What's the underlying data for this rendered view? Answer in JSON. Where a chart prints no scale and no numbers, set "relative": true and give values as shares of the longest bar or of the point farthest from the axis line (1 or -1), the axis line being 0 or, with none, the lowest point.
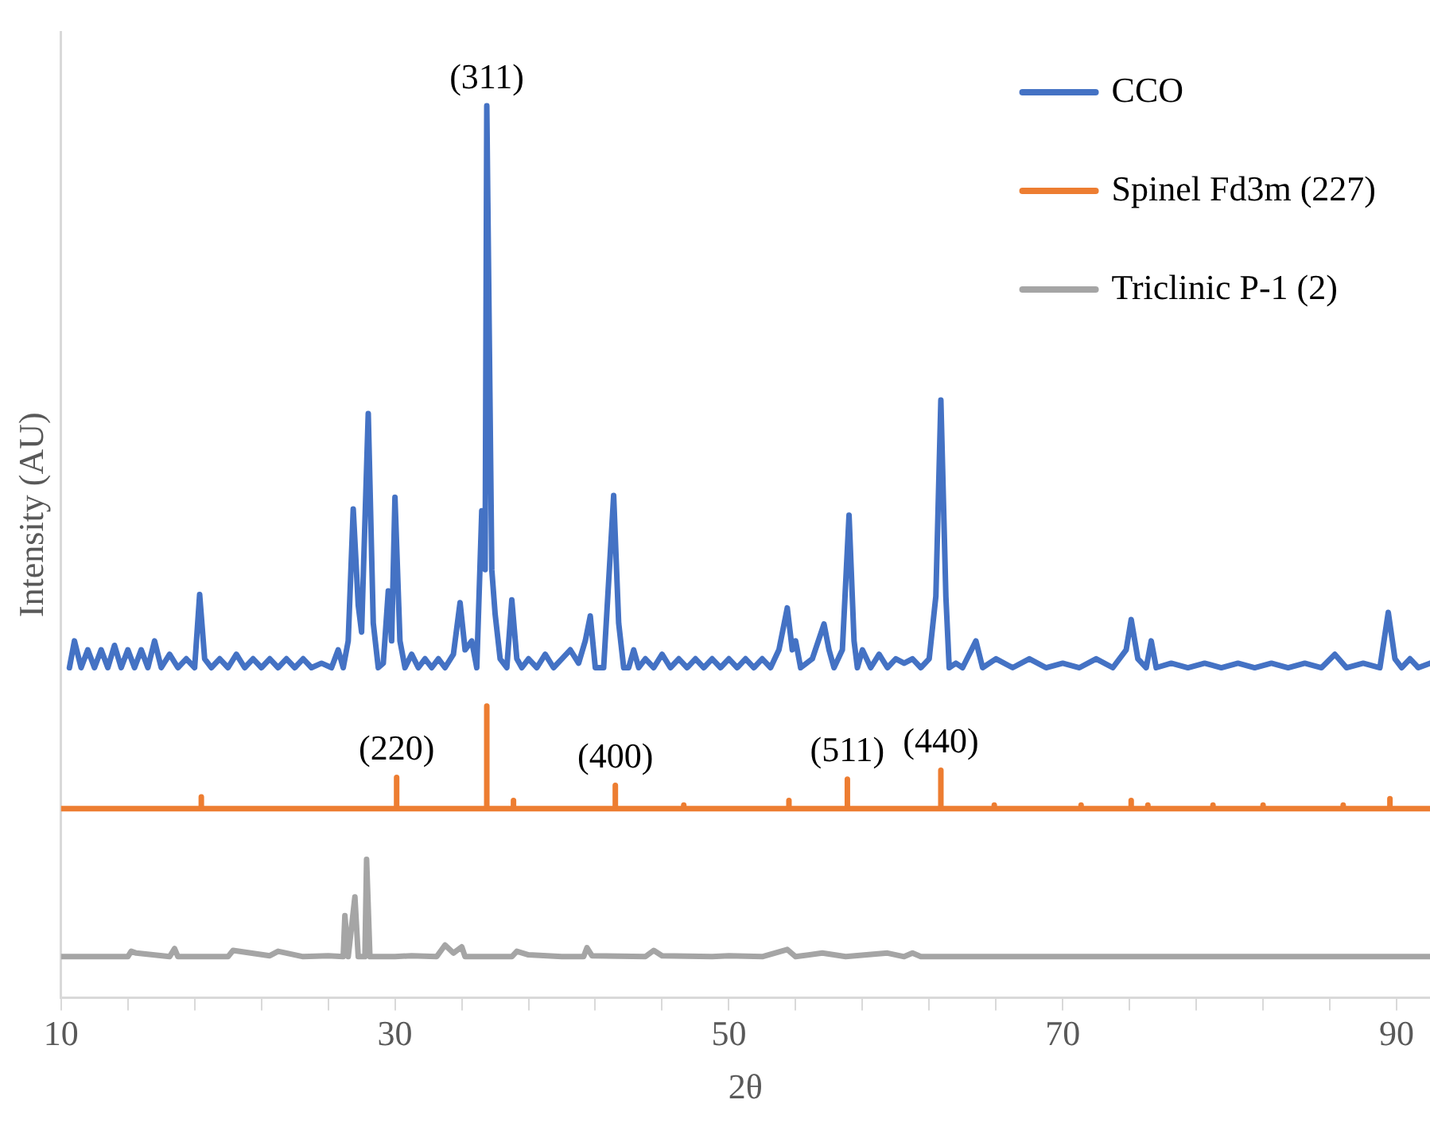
{
  "chart_data": {
    "type": "line",
    "xlabel": "2θ",
    "ylabel": "Intensity (AU)",
    "relative": true,
    "xlim": [
      10,
      92
    ],
    "xticks": [
      10,
      {
        "value": 14,
        "label": null
      },
      {
        "value": 18,
        "label": null
      },
      {
        "value": 22,
        "label": null
      },
      {
        "value": 26,
        "label": null
      },
      30,
      {
        "value": 34,
        "label": null
      },
      {
        "value": 38,
        "label": null
      },
      {
        "value": 42,
        "label": null
      },
      {
        "value": 46,
        "label": null
      },
      50,
      {
        "value": 54,
        "label": null
      },
      {
        "value": 58,
        "label": null
      },
      {
        "value": 62,
        "label": null
      },
      {
        "value": 66,
        "label": null
      },
      70,
      {
        "value": 74,
        "label": null
      },
      {
        "value": 78,
        "label": null
      },
      {
        "value": 82,
        "label": null
      },
      {
        "value": 86,
        "label": null
      },
      90
    ],
    "grid": false,
    "legend": "top right",
    "tick_labels": "x",
    "marker": "none",
    "series": [
      {
        "name": "CCO",
        "color": "#4472c4",
        "x": [
          10.5,
          10.8,
          11.2,
          11.6,
          12,
          12.4,
          12.8,
          13.2,
          13.6,
          14,
          14.4,
          14.8,
          15.2,
          15.6,
          16,
          16.5,
          17,
          17.5,
          18,
          18.3,
          18.6,
          19,
          19.5,
          20,
          20.5,
          21,
          21.5,
          22,
          22.5,
          23,
          23.5,
          24,
          24.5,
          25,
          25.6,
          26.2,
          26.6,
          26.9,
          27.2,
          27.5,
          27.8,
          28.0,
          28.4,
          28.7,
          29.0,
          29.3,
          29.6,
          29.8,
          30.0,
          30.3,
          30.6,
          31,
          31.4,
          31.8,
          32.2,
          32.6,
          33,
          33.5,
          33.9,
          34.2,
          34.6,
          34.9,
          35.2,
          35.4,
          35.5,
          35.8,
          36,
          36.3,
          36.7,
          37.0,
          37.3,
          37.6,
          38,
          38.5,
          39,
          39.5,
          40,
          40.5,
          41,
          41.4,
          41.7,
          42,
          42.5,
          43.1,
          43.4,
          43.7,
          44,
          44.3,
          44.6,
          45,
          45.5,
          46,
          46.5,
          47,
          47.5,
          48,
          48.5,
          49,
          49.5,
          50,
          50.5,
          51,
          51.5,
          52,
          52.5,
          53,
          53.5,
          53.8,
          54,
          54.3,
          55,
          55.7,
          56,
          56.3,
          56.8,
          57.2,
          57.5,
          57.7,
          58,
          58.5,
          59,
          59.5,
          60,
          60.5,
          61,
          61.5,
          62,
          62.4,
          62.7,
          63,
          63.2,
          63.6,
          64,
          64.8,
          65.2,
          66,
          67,
          68,
          69,
          70,
          71,
          72,
          73,
          73.8,
          74.1,
          74.5,
          75.0,
          75.3,
          75.6,
          76.5,
          77.5,
          78.5,
          79.5,
          80.5,
          81.5,
          82.5,
          83.5,
          84.5,
          85.5,
          86.3,
          87,
          88,
          89,
          89.5,
          89.9,
          90.3,
          90.8,
          91.3,
          92
        ],
        "values": [
          0.37,
          0.4,
          0.37,
          0.39,
          0.37,
          0.39,
          0.37,
          0.395,
          0.37,
          0.39,
          0.37,
          0.39,
          0.37,
          0.4,
          0.37,
          0.385,
          0.37,
          0.38,
          0.37,
          0.452,
          0.38,
          0.37,
          0.38,
          0.37,
          0.385,
          0.37,
          0.38,
          0.37,
          0.38,
          0.37,
          0.38,
          0.37,
          0.38,
          0.37,
          0.375,
          0.37,
          0.39,
          0.37,
          0.4,
          0.548,
          0.44,
          0.41,
          0.655,
          0.42,
          0.37,
          0.375,
          0.456,
          0.4,
          0.561,
          0.4,
          0.37,
          0.385,
          0.37,
          0.38,
          0.37,
          0.38,
          0.37,
          0.385,
          0.443,
          0.39,
          0.4,
          0.37,
          0.546,
          0.48,
          1.0,
          0.48,
          0.43,
          0.38,
          0.37,
          0.446,
          0.38,
          0.37,
          0.38,
          0.37,
          0.385,
          0.37,
          0.38,
          0.39,
          0.375,
          0.4,
          0.428,
          0.37,
          0.37,
          0.563,
          0.42,
          0.37,
          0.37,
          0.39,
          0.37,
          0.38,
          0.37,
          0.385,
          0.37,
          0.38,
          0.37,
          0.38,
          0.37,
          0.38,
          0.37,
          0.38,
          0.37,
          0.38,
          0.37,
          0.38,
          0.37,
          0.39,
          0.437,
          0.39,
          0.4,
          0.37,
          0.38,
          0.419,
          0.39,
          0.37,
          0.39,
          0.541,
          0.4,
          0.37,
          0.39,
          0.37,
          0.385,
          0.37,
          0.38,
          0.375,
          0.38,
          0.37,
          0.38,
          0.45,
          0.67,
          0.45,
          0.37,
          0.375,
          0.37,
          0.4,
          0.37,
          0.38,
          0.37,
          0.38,
          0.37,
          0.375,
          0.37,
          0.38,
          0.37,
          0.39,
          0.424,
          0.38,
          0.37,
          0.4,
          0.37,
          0.375,
          0.37,
          0.375,
          0.37,
          0.375,
          0.37,
          0.375,
          0.37,
          0.375,
          0.37,
          0.385,
          0.37,
          0.375,
          0.37,
          0.432,
          0.38,
          0.37,
          0.38,
          0.37,
          0.375
        ]
      },
      {
        "name": "Spinel Fd3m (227)",
        "color": "#ed7d31",
        "x": [
          10,
          18.4,
          18.4,
          18.4,
          30.1,
          30.1,
          30.1,
          35.5,
          35.5,
          35.5,
          37.1,
          37.1,
          37.1,
          43.2,
          43.2,
          43.2,
          47.3,
          47.3,
          47.3,
          53.6,
          53.6,
          53.6,
          57.1,
          57.1,
          57.1,
          62.7,
          62.7,
          62.7,
          65.9,
          65.9,
          65.9,
          71.1,
          71.1,
          71.1,
          74.1,
          74.1,
          74.1,
          75.1,
          75.1,
          75.1,
          79,
          79,
          79,
          82,
          82,
          82,
          86.8,
          86.8,
          86.8,
          89.6,
          89.6,
          89.6,
          92
        ],
        "values": [
          0.212,
          0.212,
          0.225,
          0.212,
          0.212,
          0.247,
          0.212,
          0.212,
          0.327,
          0.212,
          0.212,
          0.221,
          0.212,
          0.212,
          0.238,
          0.212,
          0.212,
          0.216,
          0.212,
          0.212,
          0.221,
          0.212,
          0.212,
          0.245,
          0.212,
          0.212,
          0.255,
          0.212,
          0.212,
          0.216,
          0.212,
          0.212,
          0.216,
          0.212,
          0.212,
          0.221,
          0.212,
          0.212,
          0.216,
          0.212,
          0.212,
          0.216,
          0.212,
          0.212,
          0.216,
          0.212,
          0.212,
          0.216,
          0.212,
          0.212,
          0.223,
          0.212,
          0.212
        ]
      },
      {
        "name": "Triclinic P-1 (2)",
        "color": "#a5a5a5",
        "x": [
          10,
          14,
          14.2,
          14.5,
          16.5,
          16.8,
          17,
          20,
          20.3,
          22.5,
          23,
          24.5,
          26,
          26.9,
          27.0,
          27.2,
          27.6,
          27.8,
          28.2,
          28.3,
          28.5,
          30,
          31,
          32.5,
          33,
          33.5,
          34,
          34.2,
          37,
          37.3,
          38,
          40,
          41.3,
          41.5,
          41.8,
          45,
          45.5,
          46,
          49,
          50,
          52,
          53.5,
          54,
          55.6,
          57,
          59.5,
          60.5,
          61,
          61.5,
          92
        ],
        "values": [
          0.046,
          0.046,
          0.052,
          0.05,
          0.046,
          0.055,
          0.046,
          0.046,
          0.053,
          0.047,
          0.052,
          0.046,
          0.047,
          0.046,
          0.092,
          0.046,
          0.113,
          0.046,
          0.046,
          0.155,
          0.046,
          0.046,
          0.047,
          0.046,
          0.059,
          0.05,
          0.057,
          0.046,
          0.046,
          0.052,
          0.048,
          0.046,
          0.046,
          0.056,
          0.047,
          0.046,
          0.053,
          0.047,
          0.046,
          0.047,
          0.046,
          0.054,
          0.046,
          0.05,
          0.046,
          0.05,
          0.046,
          0.05,
          0.046,
          0.046
        ]
      }
    ],
    "annotations": [
      {
        "text": "(311)",
        "x": 35.5,
        "y": 1.0
      },
      {
        "text": "(220)",
        "x": 30.1,
        "y": 0.247
      },
      {
        "text": "(400)",
        "x": 43.2,
        "y": 0.238
      },
      {
        "text": "(511)",
        "x": 57.1,
        "y": 0.245
      },
      {
        "text": "(440)",
        "x": 62.7,
        "y": 0.255
      }
    ]
  }
}
